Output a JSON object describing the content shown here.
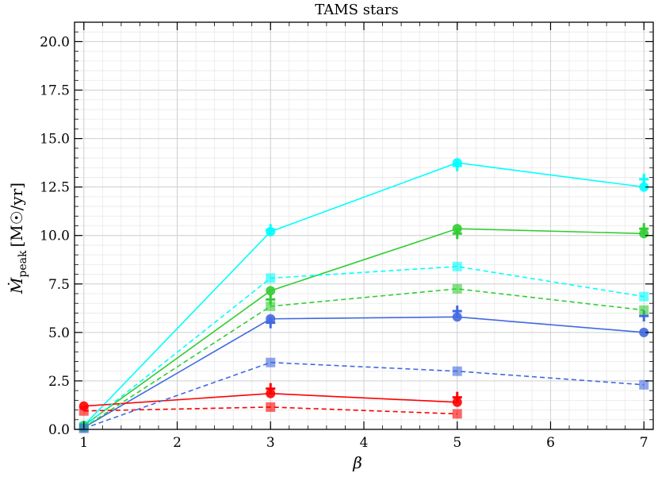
{
  "chart_data": {
    "type": "line",
    "title": "TAMS stars",
    "xlabel": "β",
    "ylabel_main": "Ṁ",
    "ylabel_sub": "peak",
    "ylabel_unit": "[M☉/yr]",
    "xlim": [
      0.9,
      7.1
    ],
    "ylim": [
      0,
      21
    ],
    "xticks": [
      1,
      2,
      3,
      4,
      5,
      6,
      7
    ],
    "yticks": [
      0.0,
      2.5,
      5.0,
      7.5,
      10.0,
      12.5,
      15.0,
      17.5,
      20.0
    ],
    "ytick_labels": [
      "0.0",
      "2.5",
      "5.0",
      "7.5",
      "10.0",
      "12.5",
      "15.0",
      "17.5",
      "20.0"
    ],
    "grid": true,
    "series": [
      {
        "color": "#00ffff",
        "style": "solid",
        "marker": "circle",
        "x": [
          1,
          3,
          5,
          7
        ],
        "y": [
          0.2,
          10.2,
          13.75,
          12.5
        ],
        "plus_y": [
          null,
          10.3,
          13.6,
          12.9
        ]
      },
      {
        "color": "#32cd32",
        "style": "solid",
        "marker": "circle",
        "x": [
          1,
          3,
          5,
          7
        ],
        "y": [
          0.2,
          7.15,
          10.35,
          10.1
        ],
        "plus_y": [
          null,
          6.7,
          10.1,
          10.35
        ]
      },
      {
        "color": "#4169e1",
        "style": "solid",
        "marker": "circle",
        "x": [
          1,
          3,
          5,
          7
        ],
        "y": [
          0.1,
          5.7,
          5.8,
          5.0
        ],
        "plus_y": [
          null,
          5.5,
          6.1,
          5.85
        ]
      },
      {
        "color": "#ff0000",
        "style": "solid",
        "marker": "circle",
        "x": [
          1,
          3,
          5
        ],
        "y": [
          1.2,
          1.85,
          1.4
        ],
        "plus_y": [
          null,
          2.1,
          1.65
        ]
      },
      {
        "color": "#00ffff",
        "style": "dashed",
        "marker": "square",
        "x": [
          1,
          3,
          5,
          7
        ],
        "y": [
          0.15,
          7.8,
          8.4,
          6.85
        ],
        "plus_y": [
          null,
          null,
          null,
          null
        ]
      },
      {
        "color": "#32cd32",
        "style": "dashed",
        "marker": "square",
        "x": [
          1,
          3,
          5,
          7
        ],
        "y": [
          0.1,
          6.35,
          7.25,
          6.15
        ],
        "plus_y": [
          null,
          null,
          null,
          null
        ]
      },
      {
        "color": "#4169e1",
        "style": "dashed",
        "marker": "square",
        "x": [
          1,
          3,
          5,
          7
        ],
        "y": [
          0.05,
          3.45,
          3.0,
          2.3
        ],
        "plus_y": [
          null,
          null,
          null,
          null
        ]
      },
      {
        "color": "#ff0000",
        "style": "dashed",
        "marker": "square",
        "x": [
          1,
          3,
          5
        ],
        "y": [
          0.95,
          1.15,
          0.8
        ],
        "plus_y": [
          null,
          null,
          null
        ]
      }
    ]
  }
}
